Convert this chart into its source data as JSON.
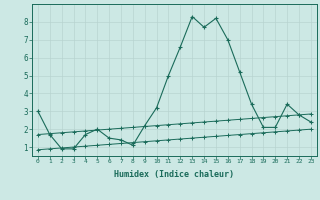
{
  "x": [
    0,
    1,
    2,
    3,
    4,
    5,
    6,
    7,
    8,
    9,
    10,
    11,
    12,
    13,
    14,
    15,
    16,
    17,
    18,
    19,
    20,
    21,
    22,
    23
  ],
  "line1": [
    3.0,
    1.7,
    0.9,
    0.9,
    1.7,
    2.0,
    1.5,
    1.4,
    1.1,
    2.2,
    3.2,
    5.0,
    6.6,
    8.3,
    7.7,
    8.2,
    7.0,
    5.2,
    3.4,
    2.1,
    2.1,
    3.4,
    2.8,
    2.4
  ],
  "line2": [
    1.7,
    1.75,
    1.8,
    1.85,
    1.9,
    1.95,
    2.0,
    2.05,
    2.1,
    2.15,
    2.2,
    2.25,
    2.3,
    2.35,
    2.4,
    2.45,
    2.5,
    2.55,
    2.6,
    2.65,
    2.7,
    2.75,
    2.8,
    2.85
  ],
  "line3": [
    0.85,
    0.9,
    0.95,
    1.0,
    1.05,
    1.1,
    1.15,
    1.2,
    1.25,
    1.3,
    1.35,
    1.4,
    1.45,
    1.5,
    1.55,
    1.6,
    1.65,
    1.7,
    1.75,
    1.8,
    1.85,
    1.9,
    1.95,
    2.0
  ],
  "line_color": "#1a6b5a",
  "bg_color": "#cce8e4",
  "grid_color": "#b8d4d0",
  "xlabel": "Humidex (Indice chaleur)",
  "ylim": [
    0.5,
    9.0
  ],
  "xlim": [
    -0.5,
    23.5
  ],
  "yticks": [
    1,
    2,
    3,
    4,
    5,
    6,
    7,
    8
  ],
  "xticks": [
    0,
    1,
    2,
    3,
    4,
    5,
    6,
    7,
    8,
    9,
    10,
    11,
    12,
    13,
    14,
    15,
    16,
    17,
    18,
    19,
    20,
    21,
    22,
    23
  ],
  "xtick_fontsize": 4.5,
  "ytick_fontsize": 5.5,
  "xlabel_fontsize": 6.0
}
